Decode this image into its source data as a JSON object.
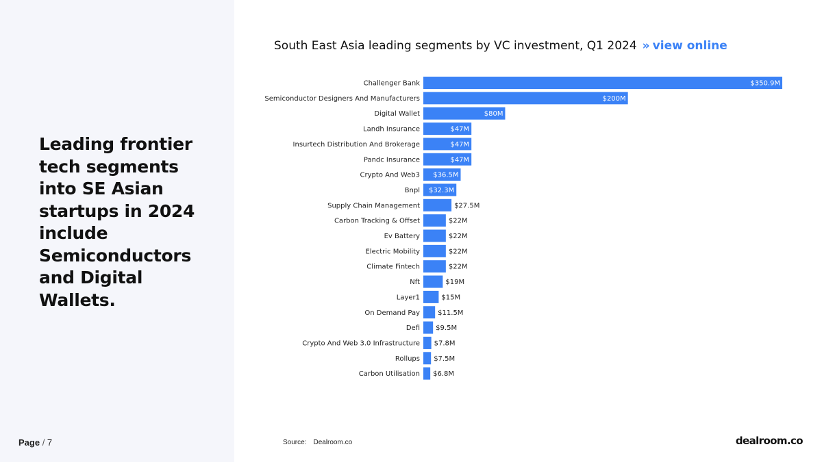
{
  "sidebar": {
    "headline": "Leading frontier tech segments into SE Asian startups in 2024 include Semiconductors and Digital Wallets.",
    "page_label": "Page",
    "page_separator": " / ",
    "page_number": "7"
  },
  "header": {
    "chart_title": "South East Asia leading segments by VC investment, Q1 2024",
    "chevrons": "»",
    "view_online": "view online"
  },
  "footer": {
    "source_label": "Source:",
    "source_value": "Dealroom.co",
    "logo": "dealroom.co"
  },
  "colors": {
    "bar": "#3b82f6",
    "accent": "#3b82f6",
    "sidebar_bg": "#f5f6fb"
  },
  "chart_data": {
    "type": "bar",
    "orientation": "horizontal",
    "title": "South East Asia leading segments by VC investment, Q1 2024",
    "xlabel": "",
    "ylabel": "",
    "unit": "USD millions",
    "xlim": [
      0,
      350.9
    ],
    "grid": false,
    "legend": "none",
    "categories": [
      "Challenger Bank",
      "Semiconductor Designers And Manufacturers",
      "Digital Wallet",
      "Landh Insurance",
      "Insurtech Distribution And Brokerage",
      "Pandc Insurance",
      "Crypto And Web3",
      "Bnpl",
      "Supply Chain Management",
      "Carbon Tracking & Offset",
      "Ev Battery",
      "Electric Mobility",
      "Climate Fintech",
      "Nft",
      "Layer1",
      "On Demand Pay",
      "Defi",
      "Crypto And Web 3.0 Infrastructure",
      "Rollups",
      "Carbon Utilisation"
    ],
    "values": [
      350.9,
      200,
      80,
      47,
      47,
      47,
      36.5,
      32.3,
      27.5,
      22,
      22,
      22,
      22,
      19,
      15,
      11.5,
      9.5,
      7.8,
      7.5,
      6.8
    ],
    "value_labels": [
      "$350.9M",
      "$200M",
      "$80M",
      "$47M",
      "$47M",
      "$47M",
      "$36.5M",
      "$32.3M",
      "$27.5M",
      "$22M",
      "$22M",
      "$22M",
      "$22M",
      "$19M",
      "$15M",
      "$11.5M",
      "$9.5M",
      "$7.8M",
      "$7.5M",
      "$6.8M"
    ]
  }
}
